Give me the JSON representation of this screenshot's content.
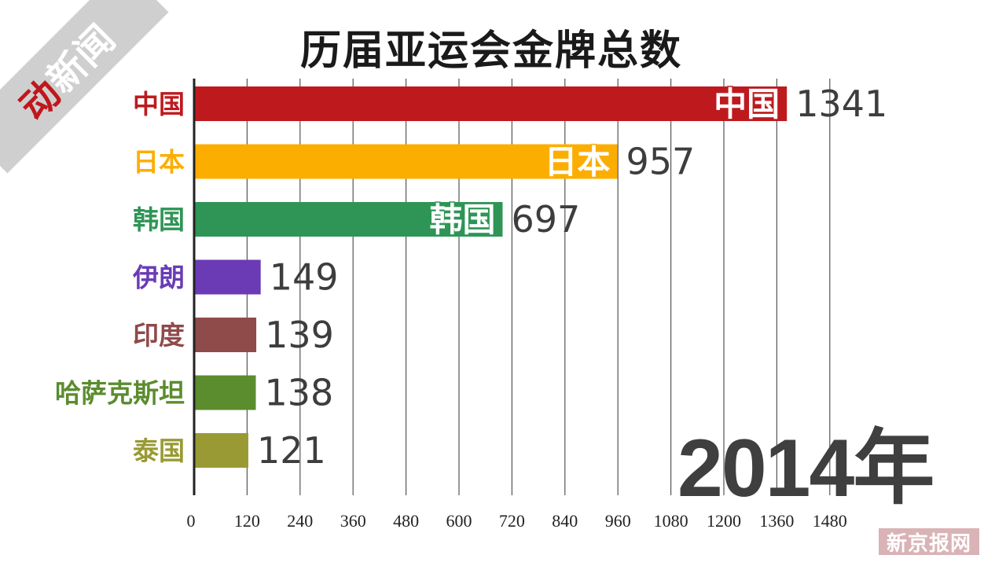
{
  "branding": {
    "logo_main": "动",
    "logo_secondary": "新闻",
    "watermark": "新京报网"
  },
  "chart_data": {
    "type": "bar",
    "orientation": "horizontal",
    "title": "历届亚运会金牌总数",
    "year": "2014年",
    "categories": [
      "中国",
      "日本",
      "韩国",
      "伊朗",
      "印度",
      "哈萨克斯坦",
      "泰国"
    ],
    "values": [
      1341,
      957,
      697,
      149,
      139,
      138,
      121
    ],
    "inbar_labels": [
      "中国",
      "日本",
      "韩国",
      "",
      "",
      "",
      ""
    ],
    "colors": [
      "#be1a1e",
      "#fcae00",
      "#2e9556",
      "#6a3bb5",
      "#8f4a4a",
      "#5b8c2e",
      "#999a33"
    ],
    "label_colors": [
      "#be1a1e",
      "#fcae00",
      "#2e9556",
      "#6a3bb5",
      "#8f4a4a",
      "#5b8c2e",
      "#999a33"
    ],
    "x_ticks": [
      0,
      120,
      240,
      360,
      480,
      600,
      720,
      840,
      960,
      1080,
      1200,
      1360,
      1480
    ],
    "xlim": [
      0,
      1480
    ],
    "grid": true
  }
}
